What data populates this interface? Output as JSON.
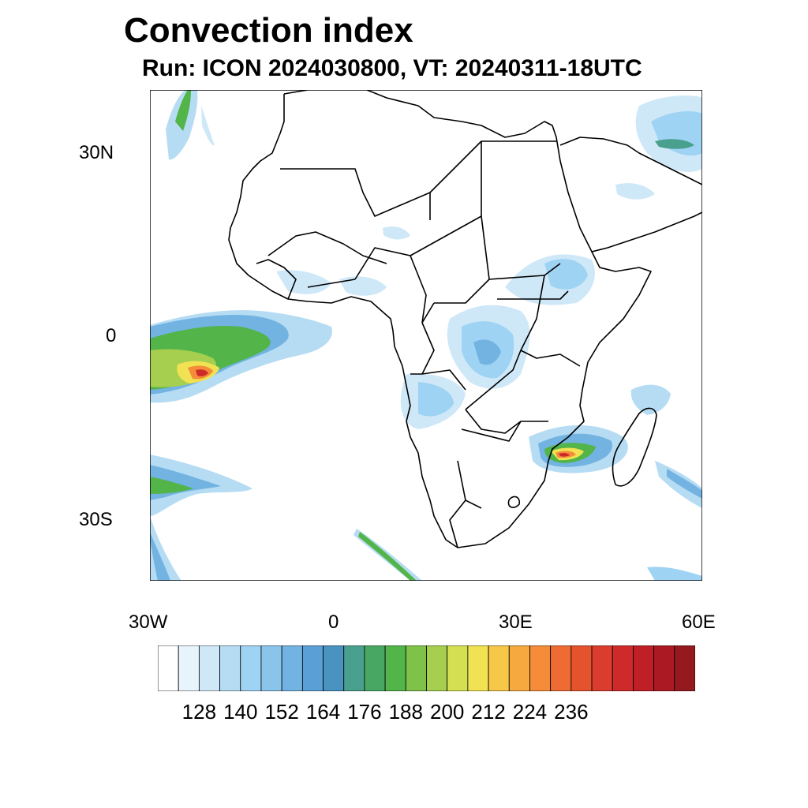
{
  "title": "Convection index",
  "subtitle": "Run: ICON 2024030800,  VT: 20240311-18UTC",
  "axes": {
    "lat_labels": [
      {
        "text": "30N"
      },
      {
        "text": "0"
      },
      {
        "text": "30S"
      }
    ],
    "lon_labels": [
      {
        "text": "30W"
      },
      {
        "text": "0"
      },
      {
        "text": "30E"
      },
      {
        "text": "60E"
      }
    ]
  },
  "colorbar": {
    "labels": [
      "128",
      "140",
      "152",
      "164",
      "176",
      "188",
      "200",
      "212",
      "224",
      "236"
    ],
    "colors": [
      "#ffffff",
      "#e8f4fc",
      "#cfe8f8",
      "#b6dcf4",
      "#9fd3f3",
      "#8ac4ea",
      "#72b3e2",
      "#5a9fd6",
      "#4a92c0",
      "#4aa08f",
      "#48a863",
      "#52b449",
      "#7fc24a",
      "#a6cf4f",
      "#d4df52",
      "#f0e253",
      "#f7c74a",
      "#f6a93f",
      "#f48c3a",
      "#ee6c33",
      "#e4532e",
      "#da3c2d",
      "#cf2a2b",
      "#bf1f27",
      "#ab1a22",
      "#941a1f"
    ]
  },
  "map": {
    "lon_range": [
      -30,
      60
    ],
    "lat_range": [
      -40,
      40
    ],
    "colors": {
      "light_blue": "#b6dcf4",
      "mid_blue": "#72b3e2",
      "teal": "#4aa08f",
      "green": "#52b449",
      "yellow": "#f0e253",
      "orange": "#f48c3a",
      "red": "#cf2a2b"
    }
  }
}
